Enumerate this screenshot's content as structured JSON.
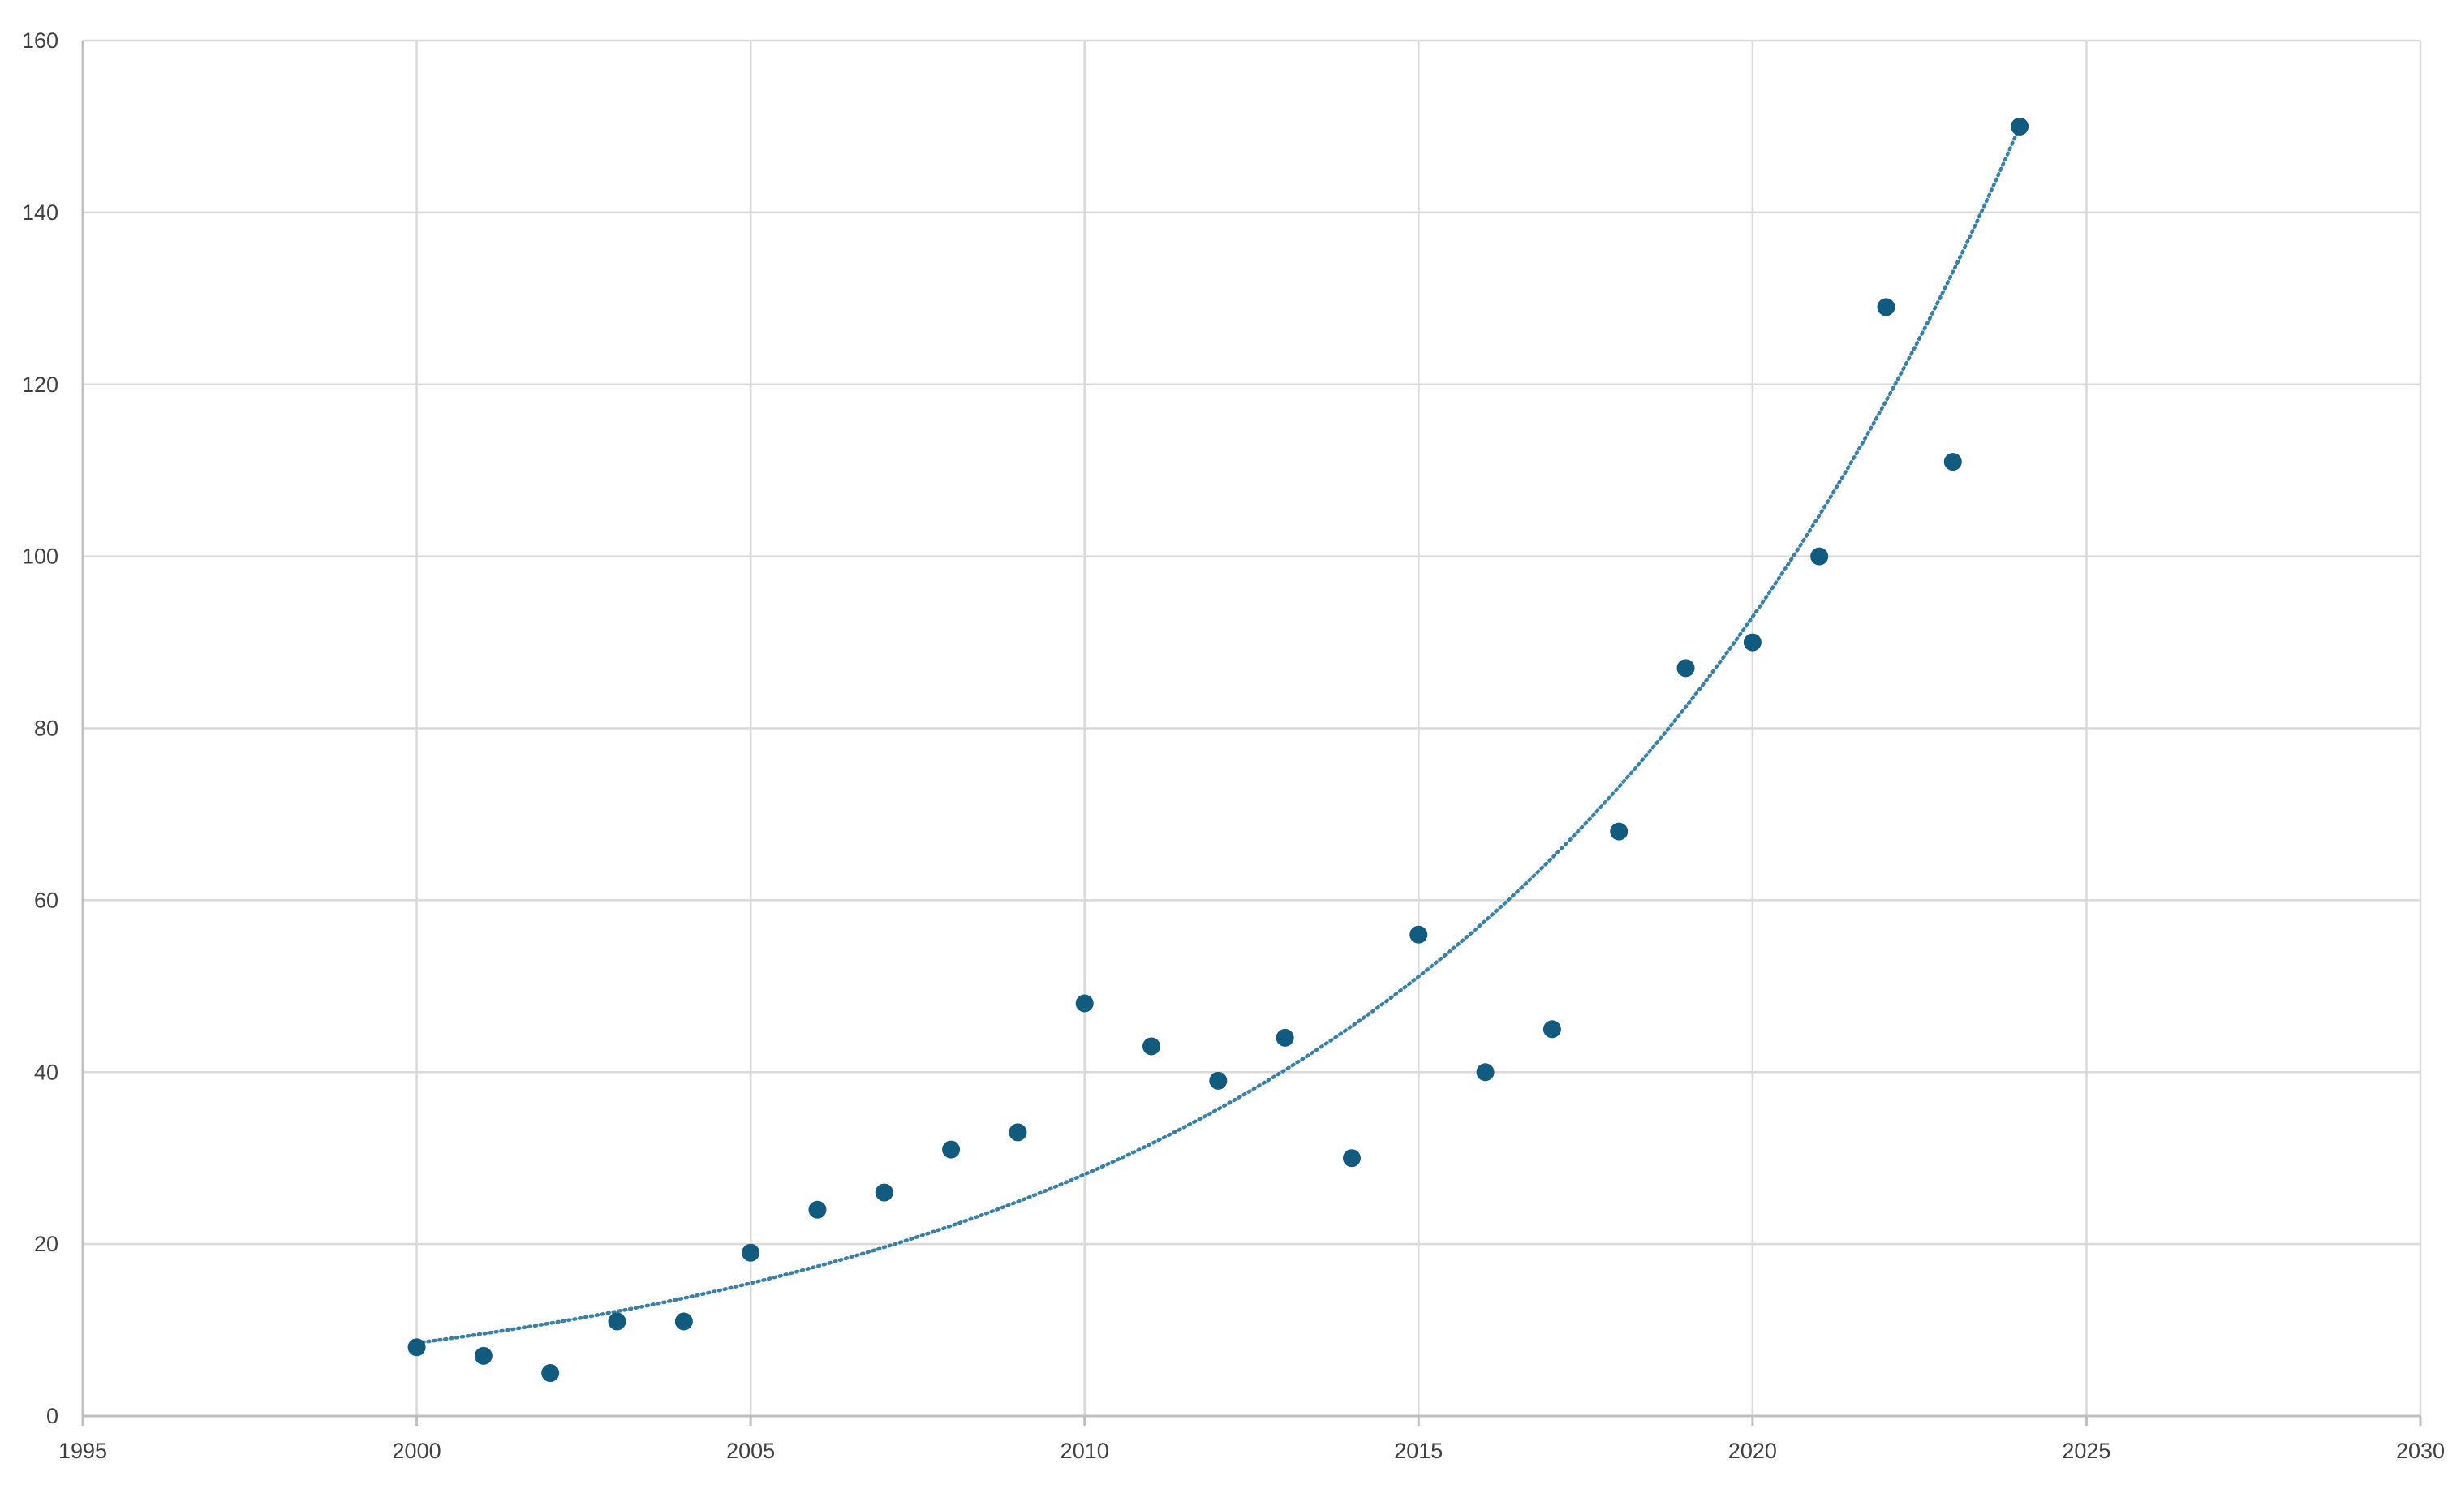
{
  "colors": {
    "background": "#ffffff",
    "grid": "#d9d9d9",
    "axis": "#bfbfbf",
    "point": "#125a7e",
    "trendline": "#3a7fa5",
    "tick_text": "#404040"
  },
  "chart_data": {
    "type": "scatter",
    "title": "",
    "xlabel": "",
    "ylabel": "",
    "xlim": [
      1995,
      2030
    ],
    "ylim": [
      0,
      160
    ],
    "xticks": [
      1995,
      2000,
      2005,
      2010,
      2015,
      2020,
      2025,
      2030
    ],
    "yticks": [
      0,
      20,
      40,
      60,
      80,
      100,
      120,
      140,
      160
    ],
    "grid": true,
    "legend": "none",
    "marker": "circle",
    "trendline": {
      "type": "exponential",
      "style": "dotted",
      "x_range": [
        2000,
        2024
      ],
      "y_start": 8.5,
      "y_end": 150
    },
    "series": [
      {
        "x": [
          2000,
          2001,
          2002,
          2003,
          2004,
          2005,
          2006,
          2007,
          2008,
          2009,
          2010,
          2011,
          2012,
          2013,
          2014,
          2015,
          2016,
          2017,
          2018,
          2019,
          2020,
          2021,
          2022,
          2023,
          2024
        ],
        "y": [
          8,
          7,
          5,
          11,
          11,
          19,
          24,
          26,
          31,
          33,
          48,
          43,
          39,
          44,
          30,
          56,
          40,
          45,
          68,
          87,
          90,
          100,
          129,
          111,
          150
        ]
      }
    ]
  }
}
